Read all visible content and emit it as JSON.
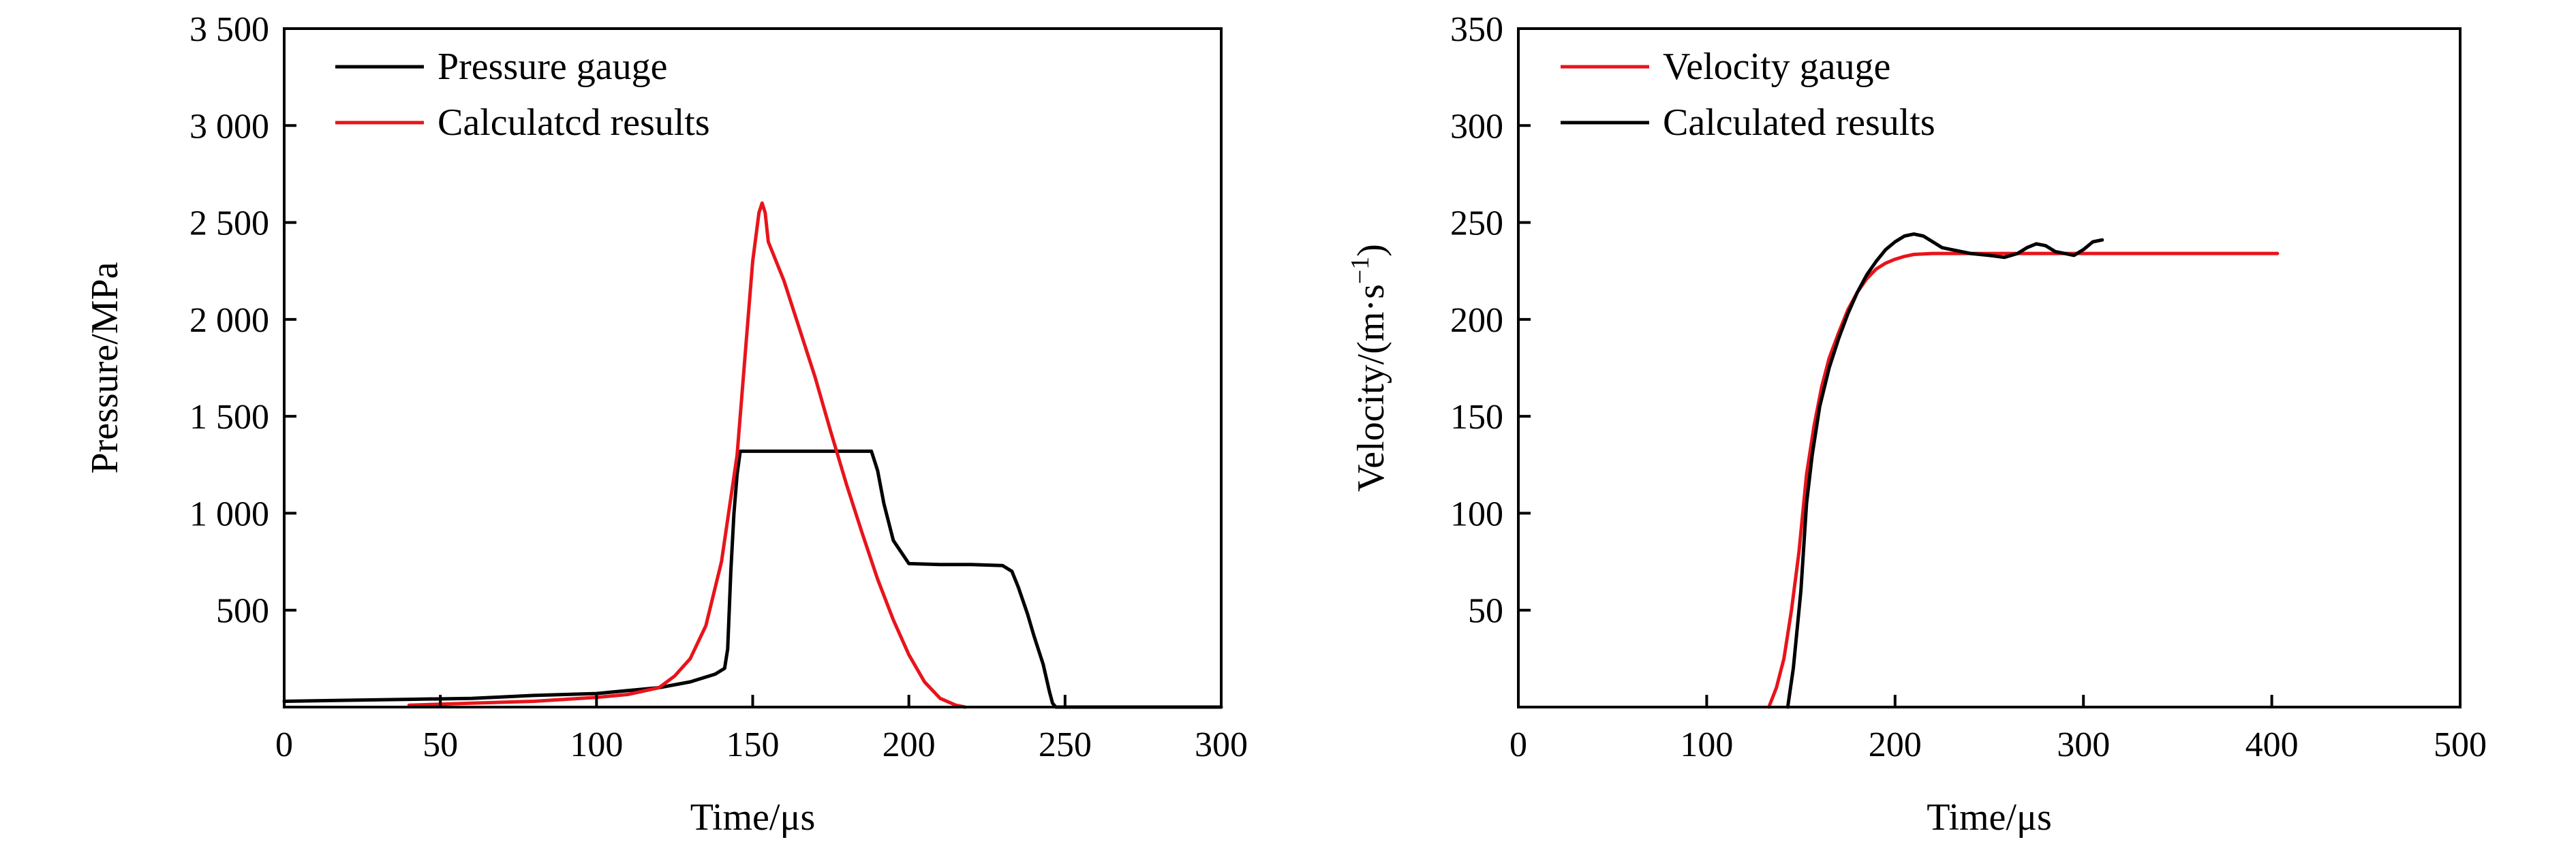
{
  "colors": {
    "red": "#e8141b",
    "black": "#000000",
    "axis": "#000000"
  },
  "chart_data": [
    {
      "type": "line",
      "xlabel": "Time/μs",
      "ylabel": "Pressure/MPa",
      "xlim": [
        0,
        300
      ],
      "ylim": [
        0,
        3500
      ],
      "xticks": [
        0,
        50,
        100,
        150,
        200,
        250,
        300
      ],
      "xtick_labels": [
        "0",
        "50",
        "100",
        "150",
        "200",
        "250",
        "300"
      ],
      "yticks": [
        500,
        1000,
        1500,
        2000,
        2500,
        3000,
        3500
      ],
      "ytick_labels": [
        "500",
        "1 000",
        "1 500",
        "2 000",
        "2 500",
        "3 000",
        "3 500"
      ],
      "grid": false,
      "legend_position": "top-left",
      "series": [
        {
          "name": "Pressure gauge",
          "color": "#000000",
          "x": [
            0,
            20,
            40,
            60,
            80,
            100,
            120,
            130,
            138,
            141,
            142,
            143,
            144,
            145,
            146,
            150,
            160,
            170,
            180,
            188,
            190,
            192,
            195,
            200,
            210,
            220,
            230,
            233,
            235,
            238,
            240,
            243,
            245,
            246,
            247,
            250,
            260,
            280,
            300
          ],
          "y": [
            30,
            35,
            40,
            45,
            60,
            70,
            100,
            130,
            170,
            200,
            300,
            700,
            1000,
            1200,
            1320,
            1320,
            1320,
            1320,
            1320,
            1320,
            1220,
            1050,
            860,
            740,
            735,
            735,
            730,
            700,
            620,
            480,
            370,
            220,
            80,
            20,
            0,
            0,
            0,
            0,
            0
          ]
        },
        {
          "name": "Calculatcd results",
          "color": "#e8141b",
          "x": [
            40,
            60,
            80,
            100,
            110,
            120,
            125,
            130,
            135,
            140,
            145,
            148,
            150,
            152,
            153,
            154,
            155,
            160,
            165,
            170,
            175,
            180,
            185,
            190,
            195,
            200,
            205,
            210,
            215,
            218
          ],
          "y": [
            10,
            20,
            30,
            50,
            65,
            100,
            160,
            250,
            420,
            750,
            1300,
            1900,
            2300,
            2550,
            2600,
            2550,
            2400,
            2200,
            1950,
            1700,
            1420,
            1150,
            900,
            660,
            450,
            270,
            130,
            45,
            10,
            0
          ]
        }
      ]
    },
    {
      "type": "line",
      "xlabel": "Time/μs",
      "ylabel_main": "Velocity/(m·s",
      "ylabel_sup": "−1",
      "ylabel_end": ")",
      "xlim": [
        0,
        500
      ],
      "ylim": [
        0,
        350
      ],
      "xticks": [
        0,
        100,
        200,
        300,
        400,
        500
      ],
      "xtick_labels": [
        "0",
        "100",
        "200",
        "300",
        "400",
        "500"
      ],
      "yticks": [
        50,
        100,
        150,
        200,
        250,
        300,
        350
      ],
      "ytick_labels": [
        "50",
        "100",
        "150",
        "200",
        "250",
        "300",
        "350"
      ],
      "grid": false,
      "legend_position": "top-left",
      "series": [
        {
          "name": "Velocity gauge",
          "color": "#e8141b",
          "x": [
            133,
            137,
            141,
            145,
            149,
            153,
            157,
            161,
            165,
            170,
            175,
            180,
            185,
            190,
            195,
            200,
            205,
            210,
            220,
            230,
            250,
            300,
            350,
            403
          ],
          "y": [
            0,
            10,
            25,
            50,
            80,
            120,
            145,
            165,
            180,
            193,
            205,
            214,
            221,
            226,
            229,
            231,
            232.5,
            233.5,
            234,
            234,
            234,
            234,
            234,
            234
          ]
        },
        {
          "name": "Calculated results",
          "color": "#000000",
          "x": [
            143,
            146,
            150,
            153,
            156,
            160,
            165,
            170,
            175,
            180,
            185,
            190,
            195,
            200,
            205,
            210,
            215,
            220,
            225,
            230,
            240,
            250,
            258,
            265,
            270,
            275,
            280,
            285,
            290,
            295,
            300,
            305,
            310
          ],
          "y": [
            0,
            20,
            60,
            105,
            130,
            155,
            175,
            190,
            203,
            214,
            223,
            230,
            236,
            240,
            243,
            244,
            243,
            240,
            237,
            236,
            234,
            233,
            232,
            234,
            237,
            239,
            238,
            235,
            234,
            233,
            236,
            240,
            241
          ]
        }
      ]
    }
  ]
}
